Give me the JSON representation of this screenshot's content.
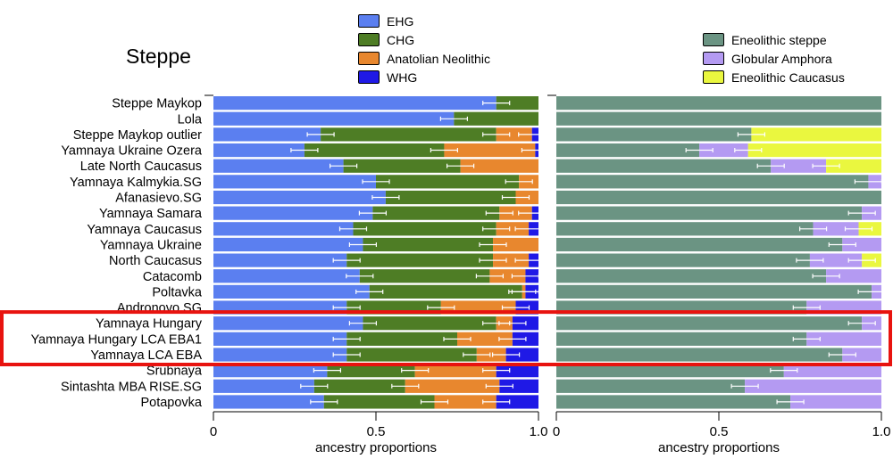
{
  "chart_data": [
    {
      "type": "bar",
      "orientation": "horizontal",
      "stacked": true,
      "title": "Steppe",
      "xlabel": "ancestry proportions",
      "xlim": [
        0,
        1
      ],
      "xticks": [
        "0",
        "0.5",
        "1.0"
      ],
      "categories": [
        "Steppe Maykop",
        "Lola",
        "Steppe Maykop outlier",
        "Yamnaya Ukraine Ozera",
        "Late North Caucasus",
        "Yamnaya Kalmykia.SG",
        "Afanasievo.SG",
        "Yamnaya Samara",
        "Yamnaya Caucasus",
        "Yamnaya Ukraine",
        "North Caucasus",
        "Catacomb",
        "Poltavka",
        "Andronovo.SG",
        "Yamnaya Hungary",
        "Yamnaya Hungary LCA EBA1",
        "Yamnaya LCA EBA",
        "Srubnaya",
        "Sintashta MBA RISE.SG",
        "Potapovka"
      ],
      "series": [
        {
          "name": "EHG",
          "color": "#5b7ff0",
          "values": [
            0.87,
            0.74,
            0.33,
            0.28,
            0.4,
            0.5,
            0.53,
            0.49,
            0.43,
            0.46,
            0.41,
            0.45,
            0.48,
            0.41,
            0.46,
            0.41,
            0.41,
            0.35,
            0.31,
            0.34
          ]
        },
        {
          "name": "CHG",
          "color": "#4e7d25",
          "values": [
            0.13,
            0.26,
            0.54,
            0.43,
            0.36,
            0.44,
            0.4,
            0.39,
            0.44,
            0.4,
            0.45,
            0.4,
            0.47,
            0.29,
            0.41,
            0.34,
            0.4,
            0.27,
            0.28,
            0.34
          ]
        },
        {
          "name": "Anatolian Neolithic",
          "color": "#e8872e",
          "values": [
            0.0,
            0.0,
            0.11,
            0.28,
            0.24,
            0.06,
            0.07,
            0.1,
            0.1,
            0.14,
            0.11,
            0.11,
            0.01,
            0.23,
            0.05,
            0.17,
            0.09,
            0.25,
            0.29,
            0.19
          ]
        },
        {
          "name": "WHG",
          "color": "#1f19e6",
          "values": [
            0.0,
            0.0,
            0.02,
            0.01,
            0.0,
            0.0,
            0.0,
            0.02,
            0.03,
            0.0,
            0.03,
            0.04,
            0.04,
            0.07,
            0.08,
            0.08,
            0.1,
            0.13,
            0.12,
            0.13
          ]
        }
      ]
    },
    {
      "type": "bar",
      "orientation": "horizontal",
      "stacked": true,
      "xlabel": "ancestry proportions",
      "xlim": [
        0,
        1
      ],
      "xticks": [
        "0",
        "0.5",
        "1.0"
      ],
      "categories": [
        "Steppe Maykop",
        "Lola",
        "Steppe Maykop outlier",
        "Yamnaya Ukraine Ozera",
        "Late North Caucasus",
        "Yamnaya Kalmykia.SG",
        "Afanasievo.SG",
        "Yamnaya Samara",
        "Yamnaya Caucasus",
        "Yamnaya Ukraine",
        "North Caucasus",
        "Catacomb",
        "Poltavka",
        "Andronovo.SG",
        "Yamnaya Hungary",
        "Yamnaya Hungary LCA EBA1",
        "Yamnaya LCA EBA",
        "Srubnaya",
        "Sintashta MBA RISE.SG",
        "Potapovka"
      ],
      "series": [
        {
          "name": "Eneolithic steppe",
          "color": "#6b9483",
          "values": [
            1.0,
            1.0,
            0.6,
            0.44,
            0.66,
            0.96,
            1.0,
            0.94,
            0.79,
            0.88,
            0.78,
            0.83,
            0.97,
            0.77,
            0.94,
            0.77,
            0.88,
            0.7,
            0.58,
            0.72
          ]
        },
        {
          "name": "Globular Amphora",
          "color": "#b49af2",
          "values": [
            0.0,
            0.0,
            0.0,
            0.15,
            0.17,
            0.04,
            0.0,
            0.06,
            0.14,
            0.12,
            0.16,
            0.17,
            0.03,
            0.23,
            0.06,
            0.23,
            0.12,
            0.3,
            0.42,
            0.28
          ]
        },
        {
          "name": "Eneolithic Caucasus",
          "color": "#eaf73f",
          "values": [
            0.0,
            0.0,
            0.4,
            0.41,
            0.17,
            0.0,
            0.0,
            0.0,
            0.07,
            0.0,
            0.06,
            0.0,
            0.0,
            0.0,
            0.0,
            0.0,
            0.0,
            0.0,
            0.0,
            0.0
          ]
        }
      ]
    }
  ],
  "highlight_color": "#e8130f"
}
